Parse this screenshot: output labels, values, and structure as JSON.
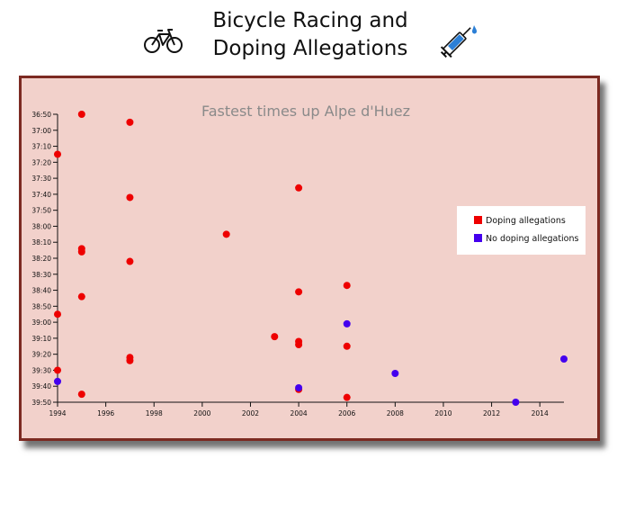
{
  "header": {
    "title_line1": "Bicycle Racing and",
    "title_line2": "Doping Allegations",
    "left_icon": "bicycle-icon",
    "right_icon": "syringe-icon"
  },
  "colors": {
    "frame_border": "#7c2a22",
    "plot_background": "#f2d1cb",
    "doping": "#ee0000",
    "no_doping": "#4400ee",
    "title_text": "#8a8a8a"
  },
  "chart_data": {
    "type": "scatter",
    "title": "Fastest times up Alpe d'Huez",
    "xlabel": "",
    "ylabel": "",
    "xlim": [
      1994,
      2015
    ],
    "ylim": [
      "36:50",
      "39:50"
    ],
    "x_ticks": [
      "1994",
      "1996",
      "1998",
      "2000",
      "2002",
      "2004",
      "2006",
      "2008",
      "2010",
      "2012",
      "2014"
    ],
    "y_ticks": [
      "36:50",
      "37:00",
      "37:10",
      "37:20",
      "37:30",
      "37:40",
      "37:50",
      "38:00",
      "38:10",
      "38:20",
      "38:30",
      "38:40",
      "38:50",
      "39:00",
      "39:10",
      "39:20",
      "39:30",
      "39:40",
      "39:50"
    ],
    "legend_position": "right",
    "grid": false,
    "series": [
      {
        "name": "Doping allegations",
        "points": [
          {
            "x": 1995,
            "y": "36:50"
          },
          {
            "x": 1997,
            "y": "36:55"
          },
          {
            "x": 1994,
            "y": "37:15"
          },
          {
            "x": 2004,
            "y": "37:36"
          },
          {
            "x": 1997,
            "y": "37:42"
          },
          {
            "x": 2001,
            "y": "38:05"
          },
          {
            "x": 1995,
            "y": "38:14"
          },
          {
            "x": 1995,
            "y": "38:16"
          },
          {
            "x": 1997,
            "y": "38:22"
          },
          {
            "x": 2006,
            "y": "38:37"
          },
          {
            "x": 2004,
            "y": "38:41"
          },
          {
            "x": 1995,
            "y": "38:44"
          },
          {
            "x": 1994,
            "y": "38:55"
          },
          {
            "x": 2003,
            "y": "39:09"
          },
          {
            "x": 2004,
            "y": "39:12"
          },
          {
            "x": 2004,
            "y": "39:14"
          },
          {
            "x": 2006,
            "y": "39:15"
          },
          {
            "x": 1997,
            "y": "39:22"
          },
          {
            "x": 1997,
            "y": "39:24"
          },
          {
            "x": 1994,
            "y": "39:30"
          },
          {
            "x": 2004,
            "y": "39:42"
          },
          {
            "x": 1995,
            "y": "39:45"
          },
          {
            "x": 2006,
            "y": "39:47"
          }
        ]
      },
      {
        "name": "No doping allegations",
        "points": [
          {
            "x": 2006,
            "y": "39:01"
          },
          {
            "x": 2008,
            "y": "39:32"
          },
          {
            "x": 2015,
            "y": "39:23"
          },
          {
            "x": 1994,
            "y": "39:37"
          },
          {
            "x": 2004,
            "y": "39:41"
          },
          {
            "x": 2013,
            "y": "39:50"
          }
        ]
      }
    ]
  }
}
